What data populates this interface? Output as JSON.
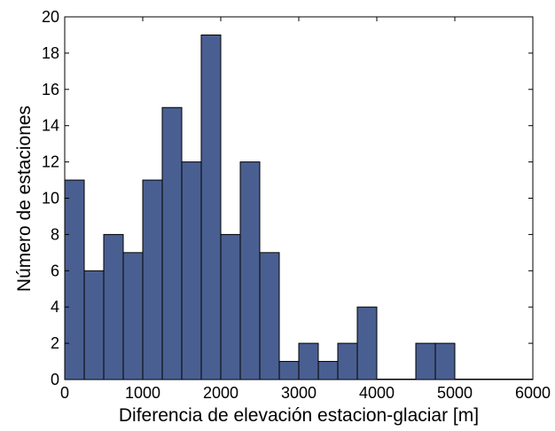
{
  "chart_data": {
    "type": "bar",
    "title": "",
    "xlabel": "Diferencia de elevación estacion-glaciar [m]",
    "ylabel": "Número de estaciones",
    "xlim": [
      0,
      6000
    ],
    "ylim": [
      0,
      20
    ],
    "xticks": [
      "0",
      "1000",
      "2000",
      "3000",
      "4000",
      "5000",
      "6000"
    ],
    "yticks": [
      "0",
      "2",
      "4",
      "6",
      "8",
      "10",
      "12",
      "14",
      "16",
      "18",
      "20"
    ],
    "grid": false,
    "legend": "none",
    "bar_color": "#4a5f91",
    "bar_edge_color": "#000000",
    "bins": [
      {
        "x0": 0,
        "x1": 250,
        "value": 11
      },
      {
        "x0": 250,
        "x1": 500,
        "value": 6
      },
      {
        "x0": 500,
        "x1": 750,
        "value": 8
      },
      {
        "x0": 750,
        "x1": 1000,
        "value": 7
      },
      {
        "x0": 1000,
        "x1": 1250,
        "value": 11
      },
      {
        "x0": 1250,
        "x1": 1500,
        "value": 15
      },
      {
        "x0": 1500,
        "x1": 1750,
        "value": 12
      },
      {
        "x0": 1750,
        "x1": 2000,
        "value": 19
      },
      {
        "x0": 2000,
        "x1": 2250,
        "value": 8
      },
      {
        "x0": 2250,
        "x1": 2500,
        "value": 12
      },
      {
        "x0": 2500,
        "x1": 2750,
        "value": 7
      },
      {
        "x0": 2750,
        "x1": 3000,
        "value": 1
      },
      {
        "x0": 3000,
        "x1": 3250,
        "value": 2
      },
      {
        "x0": 3250,
        "x1": 3500,
        "value": 1
      },
      {
        "x0": 3500,
        "x1": 3750,
        "value": 2
      },
      {
        "x0": 3750,
        "x1": 4000,
        "value": 4
      },
      {
        "x0": 4000,
        "x1": 4250,
        "value": 0
      },
      {
        "x0": 4250,
        "x1": 4500,
        "value": 0
      },
      {
        "x0": 4500,
        "x1": 4750,
        "value": 2
      },
      {
        "x0": 4750,
        "x1": 5000,
        "value": 2
      },
      {
        "x0": 5000,
        "x1": 5250,
        "value": 0
      },
      {
        "x0": 5250,
        "x1": 5500,
        "value": 0
      },
      {
        "x0": 5500,
        "x1": 5750,
        "value": 0
      },
      {
        "x0": 5750,
        "x1": 6000,
        "value": 0
      }
    ]
  }
}
